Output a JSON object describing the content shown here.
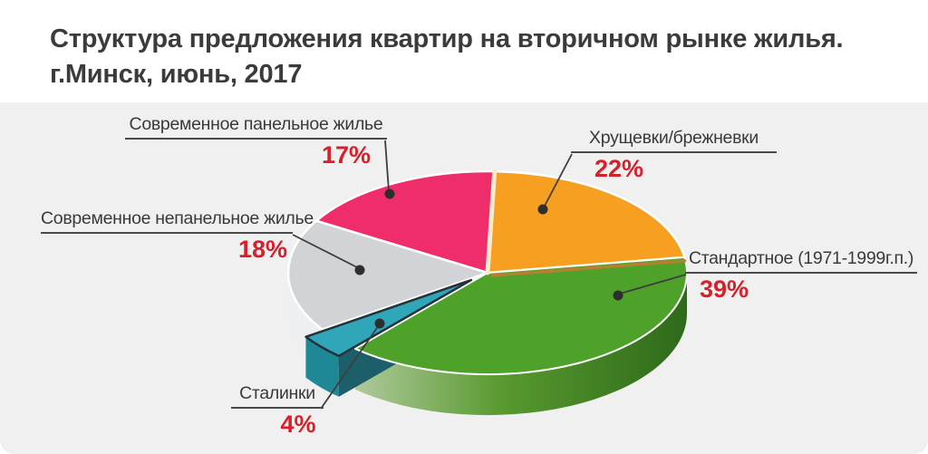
{
  "header": {
    "title_line1": "Структура предложения квартир на вторичном рынке жилья.",
    "title_line2": "г.Минск, июнь, 2017"
  },
  "colors": {
    "red": "#d6212b",
    "label": "#3a3a3a",
    "title": "#3b3b3b",
    "panel_bg": "#f0f0f1",
    "line": "#3e3e3e",
    "underline": "#4a4a4a",
    "dot": "#2e2e2e"
  },
  "callouts": {
    "panelnoe": {
      "name": "Современное панельное жилье",
      "percent": "17%"
    },
    "khrushchevki": {
      "name": "Хрущевки/брежневки",
      "percent": "22%"
    },
    "standartnoe": {
      "name": "Стандартное (1971-1999г.п.)",
      "percent": "39%"
    },
    "nepanelnoe": {
      "name": "Современное непанельное жилье",
      "percent": "18%"
    },
    "stalinki": {
      "name": "Сталинки",
      "percent": "4%"
    }
  },
  "chart_data": {
    "type": "pie",
    "title": "Структура предложения квартир на вторичном рынке жилья. г.Минск, июнь, 2017",
    "unit": "%",
    "direction": "clockwise",
    "start_angle_deg": 2,
    "legend_position": "callouts",
    "slices": [
      {
        "key": "khrushchevki",
        "label": "Хрущевки/брежневки",
        "value": 22,
        "color": "#f79f20"
      },
      {
        "key": "standartnoe",
        "label": "Стандартное (1971-1999г.п.)",
        "value": 39,
        "color": "#4fa229",
        "side_gradient": [
          "#b0c99b",
          "#57992e",
          "#2e6a1a"
        ]
      },
      {
        "key": "stalinki",
        "label": "Сталинки",
        "value": 4,
        "color": "#2fa7b8",
        "side_color": "#1f8796",
        "exploded": true,
        "edge_dark": "#2a363c",
        "edge_teal_dark": "#1c5f6b",
        "top_stroke": "#263238"
      },
      {
        "key": "nepanelnoe",
        "label": "Современное непанельное жилье",
        "value": 18,
        "color": "#d2d3d6",
        "side_color": "#edeff1",
        "cut_face": "#f4f5f6"
      },
      {
        "key": "panelnoe",
        "label": "Современное панельное жилье",
        "value": 17,
        "color": "#f02d6b"
      }
    ],
    "style": {
      "seam_cream": "#f7ebcb",
      "seam_brown": "#b5812f"
    }
  }
}
